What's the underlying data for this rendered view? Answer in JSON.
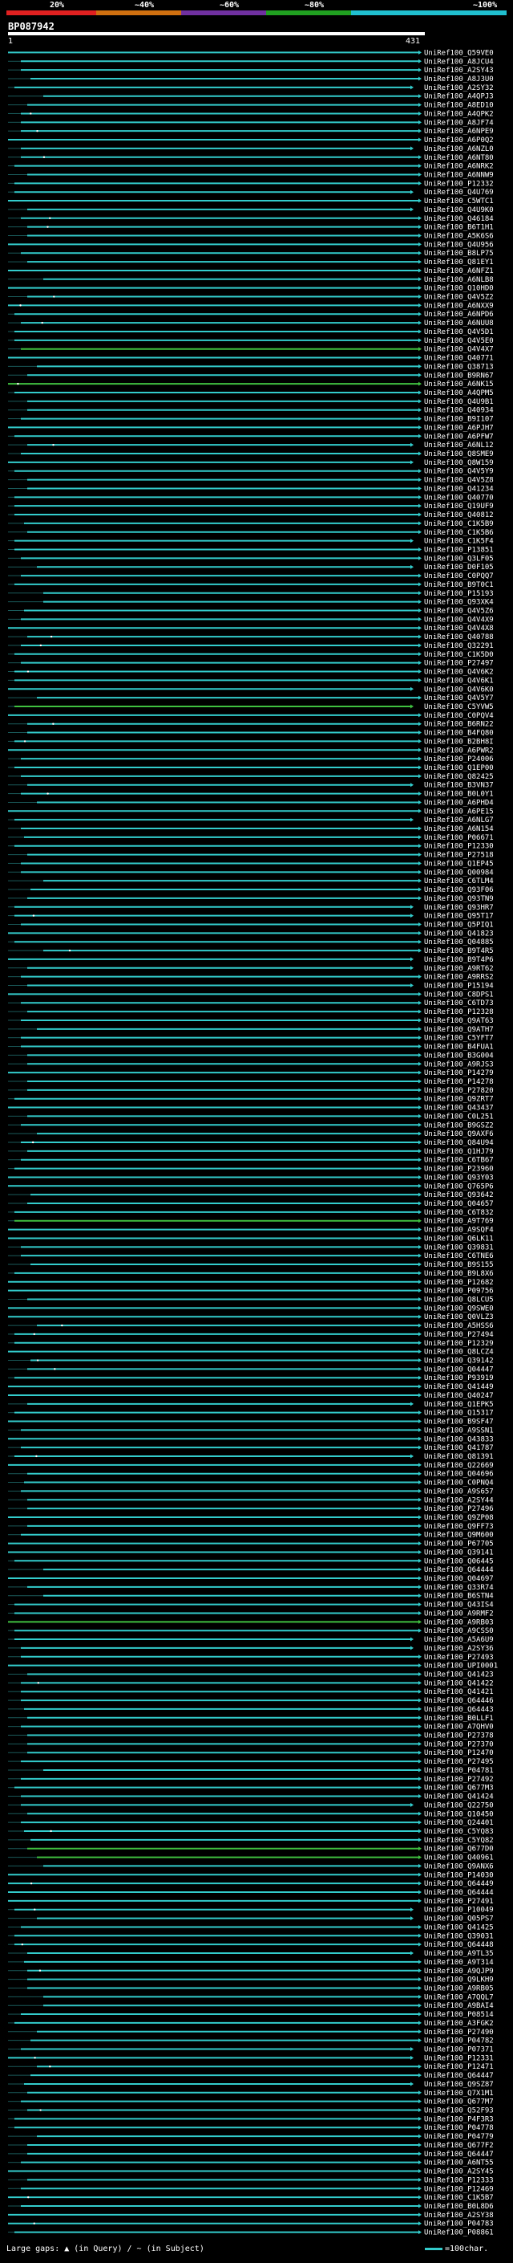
{
  "legend": {
    "ticks": [
      "20%",
      "~40%",
      "~60%",
      "~80%",
      "~100%"
    ],
    "colors": [
      "#e02020",
      "#d07010",
      "#7030a0",
      "#20a020",
      "#20c0d0"
    ]
  },
  "query": {
    "id": "BP087942",
    "start": "1",
    "end": "431"
  },
  "colors": {
    "hit": "#33cccc",
    "green": "#40c040",
    "gap": "#ffffff"
  },
  "hits": [
    "UniRef100_Q59VE0",
    "UniRef100_A8JCU4",
    "UniRef100_A2SY43",
    "UniRef100_A8J3U0",
    "UniRef100_A2SY32",
    "UniRef100_A4QPJ3",
    "UniRef100_A8ED10",
    "UniRef100_A4QPK2",
    "UniRef100_A8JF74",
    "UniRef100_A6NPE9",
    "UniRef100_A6P0Q2",
    "UniRef100_A6NZL0",
    "UniRef100_A6NT80",
    "UniRef100_A6NRK2",
    "UniRef100_A6NNW9",
    "UniRef100_P12332",
    "UniRef100_Q4U769",
    "UniRef100_C5WTC1",
    "UniRef100_Q4U9K0",
    "UniRef100_Q46184",
    "UniRef100_B6T1H1",
    "UniRef100_A5K6S6",
    "UniRef100_Q4U956",
    "UniRef100_B8LP75",
    "UniRef100_Q81EY1",
    "UniRef100_A6NFZ1",
    "UniRef100_A6NLB8",
    "UniRef100_Q10HD0",
    "UniRef100_Q4V5Z2",
    "UniRef100_A6NXX9",
    "UniRef100_A6NPD6",
    "UniRef100_A6NUU8",
    "UniRef100_Q4V5D1",
    "UniRef100_Q4V5E0",
    "UniRef100_Q4V4X7",
    "UniRef100_Q40771",
    "UniRef100_Q38713",
    "UniRef100_B9RN67",
    "UniRef100_A6NK15",
    "UniRef100_A4QPM5",
    "UniRef100_Q4U9B1",
    "UniRef100_Q40934",
    "UniRef100_B9I107",
    "UniRef100_A6PJH7",
    "UniRef100_A6PFW7",
    "UniRef100_A6NL12",
    "UniRef100_Q8SME9",
    "UniRef100_Q8W159",
    "UniRef100_Q4V5Y9",
    "UniRef100_Q4V5Z8",
    "UniRef100_Q41234",
    "UniRef100_Q40770",
    "UniRef100_Q19UF9",
    "UniRef100_Q40812",
    "UniRef100_C1K5B9",
    "UniRef100_C1K5B6",
    "UniRef100_C1K5F4",
    "UniRef100_P13851",
    "UniRef100_Q3LF05",
    "UniRef100_D0F105",
    "UniRef100_C0PQQ7",
    "UniRef100_B9T0C1",
    "UniRef100_P15193",
    "UniRef100_Q93XK4",
    "UniRef100_Q4V5Z6",
    "UniRef100_Q4V4X9",
    "UniRef100_Q4V4X8",
    "UniRef100_Q40788",
    "UniRef100_Q32291",
    "UniRef100_C1K5D0",
    "UniRef100_P27497",
    "UniRef100_Q4V6K2",
    "UniRef100_Q4V6K1",
    "UniRef100_Q4V6K0",
    "UniRef100_Q4V5Y7",
    "UniRef100_C5YVW5",
    "UniRef100_C0PQV4",
    "UniRef100_B6RN22",
    "UniRef100_B4FQ80",
    "UniRef100_B2BH8I",
    "UniRef100_A6PWR2",
    "UniRef100_P24006",
    "UniRef100_Q1EP00",
    "UniRef100_Q82425",
    "UniRef100_B3VN37",
    "UniRef100_B0L0Y1",
    "UniRef100_A6PHD4",
    "UniRef100_A6PE15",
    "UniRef100_A6NLG7",
    "UniRef100_A6N154",
    "UniRef100_P06671",
    "UniRef100_P12330",
    "UniRef100_P27518",
    "UniRef100_Q1EP45",
    "UniRef100_Q00984",
    "UniRef100_C6TLM4",
    "UniRef100_Q93F06",
    "UniRef100_Q93TN9",
    "UniRef100_Q93HR7",
    "UniRef100_Q95T17",
    "UniRef100_Q5PIQ1",
    "UniRef100_Q41823",
    "UniRef100_Q04885",
    "UniRef100_B9T4R5",
    "UniRef100_B9T4P6",
    "UniRef100_A9RT62",
    "UniRef100_A9RRS2",
    "UniRef100_P15194",
    "UniRef100_C8DPS1",
    "UniRef100_C6TD73",
    "UniRef100_P12328",
    "UniRef100_Q9AT63",
    "UniRef100_Q9ATH7",
    "UniRef100_C5YFT7",
    "UniRef100_B4FUA1",
    "UniRef100_B3G004",
    "UniRef100_A9RJS3",
    "UniRef100_P14279",
    "UniRef100_P14278",
    "UniRef100_P27820",
    "UniRef100_Q9ZRT7",
    "UniRef100_Q43437",
    "UniRef100_C0L251",
    "UniRef100_B9GSZ2",
    "UniRef100_Q9AXF6",
    "UniRef100_Q84U94",
    "UniRef100_Q1HJ79",
    "UniRef100_C6TB67",
    "UniRef100_P23960",
    "UniRef100_Q93Y03",
    "UniRef100_Q765P6",
    "UniRef100_Q93642",
    "UniRef100_Q04657",
    "UniRef100_C6T832",
    "UniRef100_A9T769",
    "UniRef100_A9SQF4",
    "UniRef100_Q6LK11",
    "UniRef100_Q39831",
    "UniRef100_C6TNE6",
    "UniRef100_B9S155",
    "UniRef100_B9L8X6",
    "UniRef100_P12682",
    "UniRef100_P09756",
    "UniRef100_Q8LCU5",
    "UniRef100_Q9SWE0",
    "UniRef100_Q0VLZ3",
    "UniRef100_A5HSS6",
    "UniRef100_P27494",
    "UniRef100_P12329",
    "UniRef100_Q8LCZ4",
    "UniRef100_Q39142",
    "UniRef100_Q04447",
    "UniRef100_P93919",
    "UniRef100_Q41449",
    "UniRef100_Q40247",
    "UniRef100_Q1EPK5",
    "UniRef100_Q15317",
    "UniRef100_B9SF47",
    "UniRef100_A9SSN1",
    "UniRef100_Q43833",
    "UniRef100_Q41787",
    "UniRef100_Q81391",
    "UniRef100_Q22669",
    "UniRef100_Q04696",
    "UniRef100_C0PNQ4",
    "UniRef100_A9S657",
    "UniRef100_A2SY44",
    "UniRef100_P27496",
    "UniRef100_Q9ZP08",
    "UniRef100_Q9FF73",
    "UniRef100_Q9M600",
    "UniRef100_P67705",
    "UniRef100_Q39141",
    "UniRef100_Q06445",
    "UniRef100_Q64444",
    "UniRef100_Q04697",
    "UniRef100_Q33R74",
    "UniRef100_B6STN4",
    "UniRef100_Q43IS4",
    "UniRef100_A9RMF2",
    "UniRef100_A9RB03",
    "UniRef100_A9CSS0",
    "UniRef100_A5A6U9",
    "UniRef100_A2SY36",
    "UniRef100_P27493",
    "UniRef100_UPI0001",
    "UniRef100_Q41423",
    "UniRef100_Q41422",
    "UniRef100_Q41421",
    "UniRef100_Q64446",
    "UniRef100_Q64443",
    "UniRef100_B0LLF1",
    "UniRef100_A7QHV0",
    "UniRef100_P27378",
    "UniRef100_P27370",
    "UniRef100_P12470",
    "UniRef100_P27495",
    "UniRef100_P04781",
    "UniRef100_P27492",
    "UniRef100_Q677M3",
    "UniRef100_Q41424",
    "UniRef100_Q22750",
    "UniRef100_Q10450",
    "UniRef100_Q24401",
    "UniRef100_C5YQ83",
    "UniRef100_C5YQ82",
    "UniRef100_Q677D0",
    "UniRef100_Q40961",
    "UniRef100_Q9ANX6",
    "UniRef100_P14030",
    "UniRef100_Q64449",
    "UniRef100_Q64444",
    "UniRef100_P27491",
    "UniRef100_P10049",
    "UniRef100_Q05PS7",
    "UniRef100_Q41425",
    "UniRef100_Q39031",
    "UniRef100_Q64448",
    "UniRef100_A9TL35",
    "UniRef100_A9T314",
    "UniRef100_A9QJP9",
    "UniRef100_Q9LKH9",
    "UniRef100_A9RB05",
    "UniRef100_A7QQL7",
    "UniRef100_A9BAI4",
    "UniRef100_P08514",
    "UniRef100_A3FGK2",
    "UniRef100_P27490",
    "UniRef100_P04782",
    "UniRef100_P07371",
    "UniRef100_P12331",
    "UniRef100_P12471",
    "UniRef100_Q64447",
    "UniRef100_Q9SZ87",
    "UniRef100_Q7X1M1",
    "UniRef100_Q677M7",
    "UniRef100_Q52F93",
    "UniRef100_P4F3R3",
    "UniRef100_P04778",
    "UniRef100_P04779",
    "UniRef100_Q677F2",
    "UniRef100_Q64447",
    "UniRef100_A6NT55",
    "UniRef100_A2SY45",
    "UniRef100_P12333",
    "UniRef100_P12469",
    "UniRef100_C1K5B7",
    "UniRef100_B0L8D6",
    "UniRef100_A2SY38",
    "UniRef100_P04783",
    "UniRef100_P08861"
  ],
  "footer": {
    "gaps_label": "Large gaps: ▲ (in Query) / ~ (in Subject)",
    "scale_label": "=100char."
  }
}
